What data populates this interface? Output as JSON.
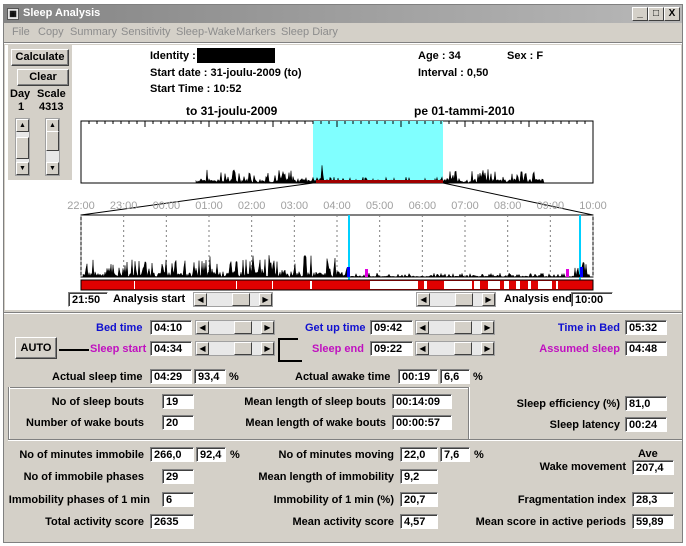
{
  "window": {
    "title": "Sleep Analysis",
    "icon": "app-icon",
    "controls": [
      "_",
      "□",
      "X"
    ]
  },
  "menu": [
    "File",
    "Copy",
    "Summary",
    "Sensitivity",
    "Sleep-Wake",
    "Markers",
    "Sleep Diary"
  ],
  "buttons": {
    "calculate": "Calculate",
    "clear": "Clear",
    "auto": "AUTO"
  },
  "left_panel": {
    "day_label": "Day",
    "scale_label": "Scale",
    "day_value": "1",
    "scale_value": "4313"
  },
  "header": {
    "identity_label": "Identity :",
    "identity_value": "",
    "start_date": "Start date : 31-joulu-2009  (to)",
    "start_time": "Start Time : 10:52",
    "age": "Age : 34",
    "sex": "Sex : F",
    "interval": "Interval   : 0,50"
  },
  "overview_chart": {
    "left_date": "to 31-joulu-2009",
    "right_date": "pe 01-tammi-2010",
    "highlight_color": "#80ffff"
  },
  "detail_chart": {
    "time_ticks": [
      "22:00",
      "23:00",
      "00:00",
      "01:00",
      "02:00",
      "03:00",
      "04:00",
      "05:00",
      "06:00",
      "07:00",
      "08:00",
      "09:00",
      "10:00"
    ],
    "sleep_color": "#e00000"
  },
  "analysis": {
    "start_value": "21:50",
    "start_label": "Analysis start",
    "end_label": "Analysis end",
    "end_value": "10:00"
  },
  "times": {
    "bed_time_label": "Bed time",
    "bed_time": "04:10",
    "sleep_start_label": "Sleep start",
    "sleep_start": "04:34",
    "get_up_label": "Get up time",
    "get_up": "09:42",
    "sleep_end_label": "Sleep end",
    "sleep_end": "09:22",
    "time_in_bed_label": "Time in Bed",
    "time_in_bed": "05:32",
    "assumed_sleep_label": "Assumed sleep",
    "assumed_sleep": "04:48",
    "actual_sleep_label": "Actual sleep time",
    "actual_sleep": "04:29",
    "actual_sleep_pct": "93,4",
    "pct": "%",
    "actual_awake_label": "Actual awake time",
    "actual_awake": "00:19",
    "actual_awake_pct": "6,6"
  },
  "bouts": {
    "sleep_bouts_label": "No of sleep bouts",
    "sleep_bouts": "19",
    "wake_bouts_label": "Number of wake bouts",
    "wake_bouts": "20",
    "mean_sleep_label": "Mean length of sleep bouts",
    "mean_sleep": "00:14:09",
    "mean_wake_label": "Mean length of wake bouts",
    "mean_wake": "00:00:57",
    "efficiency_label": "Sleep efficiency (%)",
    "efficiency": "81,0",
    "latency_label": "Sleep latency",
    "latency": "00:24"
  },
  "activity": {
    "immobile_min_label": "No of minutes immobile",
    "immobile_min": "266,0",
    "immobile_pct": "92,4",
    "immobile_phases_label": "No of immobile phases",
    "immobile_phases": "29",
    "immobility_1min_label": "Immobility phases of 1 min",
    "immobility_1min": "6",
    "total_activity_label": "Total activity score",
    "total_activity": "2635",
    "moving_min_label": "No of minutes moving",
    "moving_min": "22,0",
    "moving_pct": "7,6",
    "mean_immobility_label": "Mean length of immobility",
    "mean_immobility": "9,2",
    "immob_1min_pct_label": "Immobility of 1 min (%)",
    "immob_1min_pct": "20,7",
    "mean_activity_label": "Mean activity score",
    "mean_activity": "4,57",
    "ave_label": "Ave",
    "wake_movement_label": "Wake movement",
    "wake_movement": "207,4",
    "fragmentation_label": "Fragmentation index",
    "fragmentation": "28,3",
    "mean_active_label": "Mean score in active periods",
    "mean_active": "59,89"
  }
}
